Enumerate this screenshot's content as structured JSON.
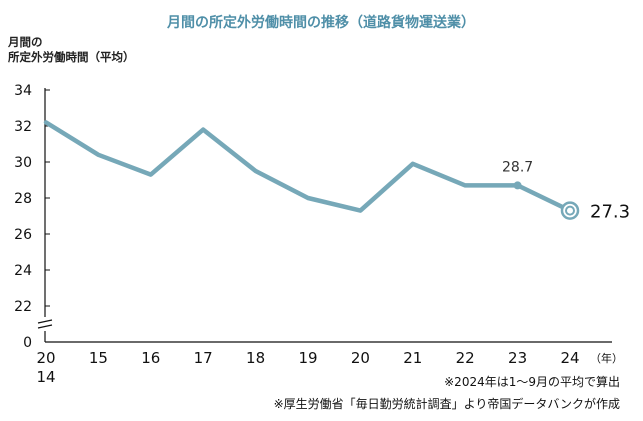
{
  "chart_data": {
    "type": "line",
    "title": "月間の所定外労働時間の推移（道路貨物運送業）",
    "ylabel_lines": [
      "月間の",
      "所定外労働時間（平均）"
    ],
    "x_unit": "（年）",
    "categories": [
      "2014",
      "15",
      "16",
      "17",
      "18",
      "19",
      "20",
      "21",
      "22",
      "23",
      "24"
    ],
    "x_tick_labels": [
      [
        "20",
        "14"
      ],
      [
        "15"
      ],
      [
        "16"
      ],
      [
        "17"
      ],
      [
        "18"
      ],
      [
        "19"
      ],
      [
        "20"
      ],
      [
        "21"
      ],
      [
        "22"
      ],
      [
        "23"
      ],
      [
        "24"
      ]
    ],
    "values": [
      32.2,
      30.4,
      29.3,
      31.8,
      29.5,
      28.0,
      27.3,
      29.9,
      28.7,
      28.7,
      27.3
    ],
    "yticks": [
      "0",
      "22",
      "24",
      "26",
      "28",
      "30",
      "32",
      "34"
    ],
    "ylim": [
      22,
      34
    ],
    "axis_break": true,
    "data_labels": [
      {
        "index": 9,
        "text": "28.7"
      },
      {
        "index": 10,
        "text": "27.3"
      }
    ],
    "notes": [
      "※2024年は1～9月の平均で算出",
      "※厚生労働省「毎日勤労統計調査」より帝国データバンクが作成"
    ],
    "colors": {
      "line": "#76a8b8",
      "title": "#4f8fa8",
      "axis": "#111111"
    }
  }
}
